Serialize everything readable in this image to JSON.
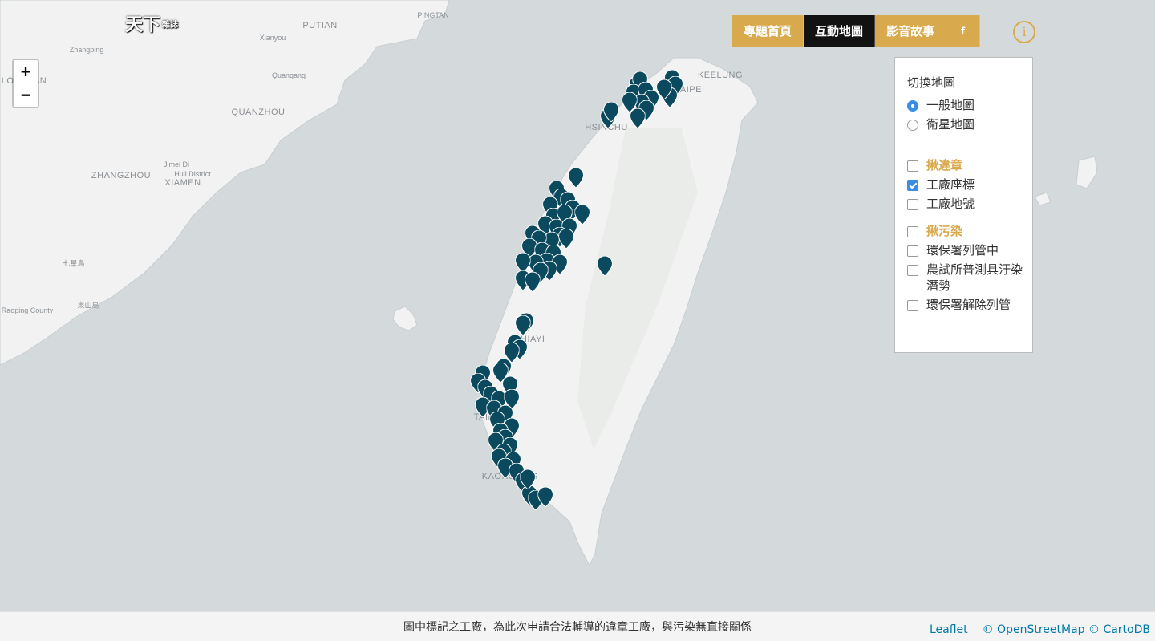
{
  "map": {
    "cities": [
      {
        "label": "PINGTAN",
        "small": true
      },
      {
        "label": "PUTIAN",
        "small": false
      },
      {
        "label": "Xianyou",
        "small": true
      },
      {
        "label": "Zhangping",
        "small": true
      },
      {
        "label": "Quangang",
        "small": true
      },
      {
        "label": "QUANZHOU",
        "small": false
      },
      {
        "label": "ZHANGZHOU",
        "small": false
      },
      {
        "label": "Jimei Di",
        "small": true
      },
      {
        "label": "Huli District",
        "small": true
      },
      {
        "label": "XIAMEN",
        "small": false
      },
      {
        "label": "KEELUNG",
        "small": false
      },
      {
        "label": "TAIPEI",
        "small": false
      },
      {
        "label": "HSINCHU",
        "small": false
      },
      {
        "label": "CHIAYI",
        "small": false
      },
      {
        "label": "KAOHSIUNG",
        "small": false
      },
      {
        "label": "TAINAN",
        "small": false
      },
      {
        "label": "Raoping County",
        "small": true
      },
      {
        "label": "LONGYAN",
        "small": false
      },
      {
        "label": "七星島",
        "small": true
      },
      {
        "label": "東山島",
        "small": true
      }
    ],
    "marker_color": "#0b4a5e"
  },
  "logo": {
    "main": "天下",
    "sub": "雜誌"
  },
  "zoom": {
    "in_label": "+",
    "out_label": "−"
  },
  "nav": {
    "tabs": [
      {
        "label": "專題首頁",
        "active": false
      },
      {
        "label": "互動地圖",
        "active": true
      },
      {
        "label": "影音故事",
        "active": false
      },
      {
        "label": "f",
        "active": false
      }
    ],
    "info_label": "i"
  },
  "layers_panel": {
    "title": "切換地圖",
    "basemaps": [
      {
        "label": "一般地圖",
        "checked": true
      },
      {
        "label": "衛星地圖",
        "checked": false
      }
    ],
    "group1": {
      "label": "揪違章",
      "checked": false
    },
    "group1_items": [
      {
        "label": "工廠座標",
        "checked": true
      },
      {
        "label": "工廠地號",
        "checked": false
      }
    ],
    "group2": {
      "label": "揪污染",
      "checked": false
    },
    "group2_items": [
      {
        "label": "環保署列管中",
        "checked": false
      },
      {
        "label": "農試所普測具汙染潛勢",
        "checked": false
      },
      {
        "label": "環保署解除列管",
        "checked": false
      }
    ]
  },
  "footer": {
    "note": "圖中標記之工廠，為此次申請合法輔導的違章工廠，與污染無直接關係",
    "attribution": {
      "leaflet": "Leaflet",
      "sep": "|",
      "osm": "© OpenStreetMap",
      "carto": "© CartoDB"
    }
  },
  "colors": {
    "accent": "#d9a94e",
    "active_tab": "#121212",
    "marker": "#0b4a5e",
    "sea": "#d4dadc",
    "land": "#f2f2f2"
  }
}
